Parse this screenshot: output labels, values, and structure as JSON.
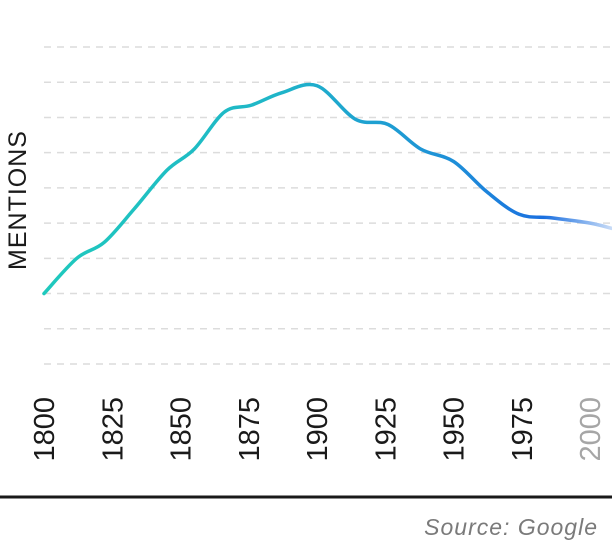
{
  "chart_data": {
    "type": "line",
    "title": "",
    "xlabel": "",
    "ylabel": "MENTIONS",
    "x_ticks": [
      "1800",
      "1825",
      "1850",
      "1875",
      "1900",
      "1925",
      "1950",
      "1975",
      "2000"
    ],
    "future_tick": "2000",
    "xlim": [
      1800,
      2008
    ],
    "ylim": [
      0,
      9
    ],
    "grid": true,
    "y_tick_labels_shown": false,
    "gradient_colors": [
      "#1fc9bd",
      "#1fb6c8",
      "#1e8fd8",
      "#1a6fe0",
      "#c9dcf7"
    ],
    "series": [
      {
        "x": [
          1800,
          1812,
          1822,
          1833,
          1845,
          1855,
          1866,
          1876,
          1887,
          1900,
          1914,
          1926,
          1938,
          1950,
          1962,
          1974,
          1986,
          2000,
          2008
        ],
        "y": [
          2.0,
          3.0,
          3.45,
          4.4,
          5.5,
          6.1,
          7.15,
          7.35,
          7.7,
          7.9,
          6.95,
          6.8,
          6.1,
          5.75,
          4.9,
          4.25,
          4.15,
          4.0,
          3.85
        ]
      }
    ]
  },
  "source": "Source: Google"
}
